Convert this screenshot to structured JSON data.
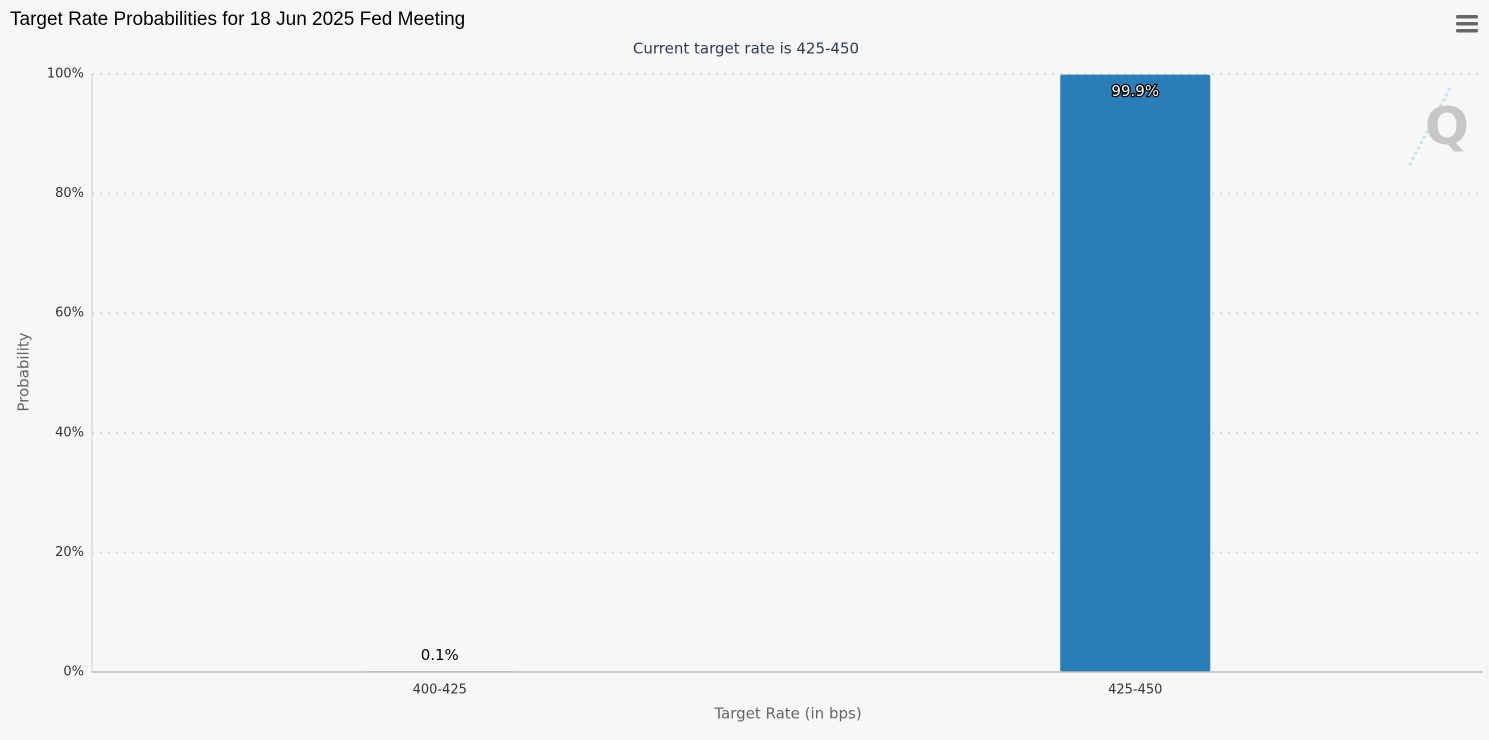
{
  "chart_data": {
    "type": "bar",
    "title": "Target Rate Probabilities for 18 Jun 2025 Fed Meeting",
    "subtitle": "Current target rate is 425-450",
    "x_label": "Target Rate (in bps)",
    "y_label": "Probability",
    "categories": [
      "400-425",
      "425-450"
    ],
    "values": [
      0.1,
      99.9
    ],
    "value_labels": [
      "0.1%",
      "99.9%"
    ],
    "color": "#2a7eb8",
    "ylim": [
      0,
      100
    ],
    "yticks": [
      {
        "value": 0,
        "label": "0%"
      },
      {
        "value": 20,
        "label": "20%"
      },
      {
        "value": 40,
        "label": "40%"
      },
      {
        "value": 60,
        "label": "60%"
      },
      {
        "value": 80,
        "label": "80%"
      },
      {
        "value": 100,
        "label": "100%"
      }
    ],
    "grid": true
  }
}
